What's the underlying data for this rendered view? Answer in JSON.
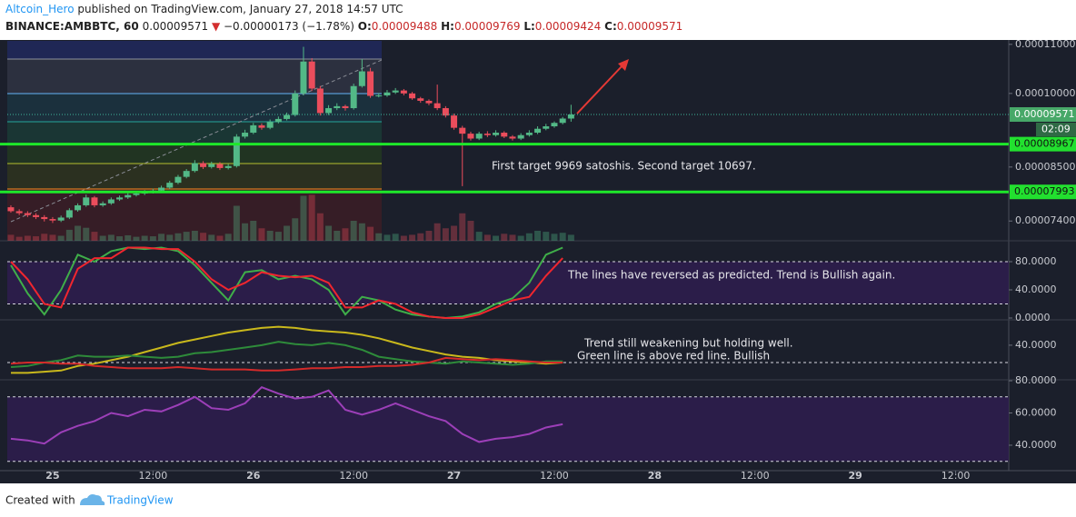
{
  "header": {
    "author": "Altcoin_Hero",
    "published": "published on TradingView.com, January 27, 2018 14:57 UTC",
    "symbol": "BINANCE:AMBBTC, 60",
    "last": "0.00009571",
    "change": "−0.00000173 (−1.78%)",
    "ohlc": [
      {
        "key": "O:",
        "value": "0.00009488"
      },
      {
        "key": "H:",
        "value": "0.00009769"
      },
      {
        "key": "L:",
        "value": "0.00009424"
      },
      {
        "key": "C:",
        "value": "0.00009571"
      }
    ]
  },
  "footer": {
    "created": "Created with",
    "brand": "TradingView"
  },
  "chart_data": [
    {
      "type": "candlestick",
      "x": [
        0,
        1,
        2,
        3,
        4,
        5,
        6,
        7,
        8,
        9,
        10,
        11,
        12,
        13,
        14,
        15,
        16,
        17,
        18,
        19,
        20,
        21,
        22,
        23,
        24,
        25,
        26,
        27,
        28,
        29,
        30,
        31,
        32,
        33,
        34,
        35,
        36,
        37,
        38,
        39,
        40,
        41,
        42,
        43,
        44,
        45,
        46,
        47,
        48,
        49,
        50,
        51,
        52,
        53,
        54,
        55,
        56,
        57,
        58,
        59,
        60,
        61,
        62,
        63,
        64,
        65,
        66,
        67
      ],
      "open": [
        7.68e-05,
        7.6e-05,
        7.56e-05,
        7.52e-05,
        7.48e-05,
        7.44e-05,
        7.41e-05,
        7.47e-05,
        7.62e-05,
        7.72e-05,
        7.88e-05,
        7.72e-05,
        7.76e-05,
        7.84e-05,
        7.88e-05,
        7.93e-05,
        7.96e-05,
        7.99e-05,
        8.02e-05,
        8.08e-05,
        8.18e-05,
        8.3e-05,
        8.42e-05,
        8.58e-05,
        8.5e-05,
        8.56e-05,
        8.48e-05,
        8.52e-05,
        9.12e-05,
        9.2e-05,
        9.35e-05,
        9.3e-05,
        9.42e-05,
        9.48e-05,
        9.56e-05,
        0.0001,
        0.0001065,
        0.000101,
        9.6e-05,
        9.7e-05,
        9.74e-05,
        9.7e-05,
        0.0001015,
        0.0001045,
        9.95e-05,
        9.96e-05,
        0.0001002,
        0.0001006,
        0.0001,
        9.9e-05,
        9.85e-05,
        9.8e-05,
        9.7e-05,
        9.55e-05,
        9.3e-05,
        9.18e-05,
        9.08e-05,
        9.18e-05,
        9.15e-05,
        9.2e-05,
        9.12e-05,
        9.08e-05,
        9.15e-05,
        9.2e-05,
        9.28e-05,
        9.33e-05,
        9.4e-05,
        9.488e-05
      ],
      "high": [
        7.72e-05,
        7.64e-05,
        7.6e-05,
        7.56e-05,
        7.52e-05,
        7.48e-05,
        7.51e-05,
        7.66e-05,
        7.76e-05,
        7.94e-05,
        7.91e-05,
        7.8e-05,
        7.88e-05,
        7.92e-05,
        7.97e-05,
        8e-05,
        8.03e-05,
        8.06e-05,
        8.12e-05,
        8.22e-05,
        8.34e-05,
        8.46e-05,
        8.64e-05,
        8.62e-05,
        8.61e-05,
        8.6e-05,
        8.56e-05,
        9.17e-05,
        9.26e-05,
        9.4e-05,
        9.39e-05,
        9.47e-05,
        9.53e-05,
        9.61e-05,
        0.0001006,
        0.0001095,
        0.0001072,
        0.0001015,
        9.76e-05,
        9.8e-05,
        9.77e-05,
        0.000102,
        0.000107,
        0.0001052,
        0.0001001,
        0.0001007,
        0.0001011,
        0.0001009,
        0.0001003,
        9.93e-05,
        9.88e-05,
        0.0001018,
        9.74e-05,
        9.59e-05,
        9.34e-05,
        9.22e-05,
        9.22e-05,
        9.23e-05,
        9.25e-05,
        9.23e-05,
        9.15e-05,
        9.19e-05,
        9.25e-05,
        9.33e-05,
        9.38e-05,
        9.43e-05,
        9.52e-05,
        9.769e-05
      ],
      "low": [
        7.57e-05,
        7.52e-05,
        7.48e-05,
        7.44e-05,
        7.39e-05,
        7.36e-05,
        7.38e-05,
        7.44e-05,
        7.59e-05,
        7.69e-05,
        7.68e-05,
        7.69e-05,
        7.73e-05,
        7.81e-05,
        7.85e-05,
        7.9e-05,
        7.93e-05,
        7.96e-05,
        7.99e-05,
        8.05e-05,
        8.15e-05,
        8.27e-05,
        8.39e-05,
        8.46e-05,
        8.47e-05,
        8.44e-05,
        8.45e-05,
        8.49e-05,
        9.08e-05,
        9.17e-05,
        9.26e-05,
        9.27e-05,
        9.39e-05,
        9.45e-05,
        9.53e-05,
        9.96e-05,
        0.0001005,
        9.55e-05,
        9.56e-05,
        9.66e-05,
        9.65e-05,
        9.67e-05,
        0.0001012,
        9.91e-05,
        9.92e-05,
        9.93e-05,
        9.99e-05,
        9.96e-05,
        9.87e-05,
        9.81e-05,
        9.76e-05,
        9.66e-05,
        9.51e-05,
        9.26e-05,
        8.11e-05,
        9.04e-05,
        9.05e-05,
        9.11e-05,
        9.12e-05,
        9.09e-05,
        9.04e-05,
        9.05e-05,
        9.12e-05,
        9.17e-05,
        9.25e-05,
        9.3e-05,
        9.37e-05,
        9.424e-05
      ],
      "close": [
        7.6e-05,
        7.56e-05,
        7.52e-05,
        7.48e-05,
        7.44e-05,
        7.41e-05,
        7.47e-05,
        7.62e-05,
        7.72e-05,
        7.88e-05,
        7.72e-05,
        7.76e-05,
        7.84e-05,
        7.88e-05,
        7.93e-05,
        7.96e-05,
        7.99e-05,
        8.02e-05,
        8.08e-05,
        8.18e-05,
        8.3e-05,
        8.42e-05,
        8.58e-05,
        8.5e-05,
        8.56e-05,
        8.48e-05,
        8.52e-05,
        9.12e-05,
        9.2e-05,
        9.35e-05,
        9.3e-05,
        9.42e-05,
        9.48e-05,
        9.56e-05,
        0.0001,
        0.0001065,
        0.000101,
        9.6e-05,
        9.7e-05,
        9.74e-05,
        9.7e-05,
        0.0001015,
        0.0001045,
        9.95e-05,
        9.96e-05,
        0.0001002,
        0.0001006,
        0.0001,
        9.9e-05,
        9.85e-05,
        9.8e-05,
        9.7e-05,
        9.55e-05,
        9.3e-05,
        9.18e-05,
        9.08e-05,
        9.18e-05,
        9.15e-05,
        9.2e-05,
        9.12e-05,
        9.08e-05,
        9.15e-05,
        9.2e-05,
        9.28e-05,
        9.33e-05,
        9.4e-05,
        9.488e-05,
        9.571e-05
      ],
      "colors": {
        "up": "#53b987",
        "down": "#eb4d5c"
      },
      "volume": {
        "ylim": [
          0,
          100
        ],
        "values": [
          12,
          8,
          10,
          9,
          14,
          12,
          10,
          22,
          30,
          26,
          18,
          10,
          12,
          9,
          11,
          8,
          10,
          9,
          14,
          12,
          15,
          18,
          20,
          16,
          12,
          10,
          14,
          70,
          35,
          40,
          25,
          20,
          18,
          30,
          45,
          90,
          92,
          55,
          30,
          20,
          25,
          40,
          35,
          28,
          15,
          12,
          14,
          10,
          12,
          15,
          20,
          35,
          25,
          30,
          55,
          40,
          18,
          12,
          10,
          14,
          12,
          10,
          15,
          20,
          18,
          14,
          16,
          12
        ]
      },
      "xlim": [
        -0.43,
        119.35
      ],
      "xticks": [
        {
          "value": 5,
          "label": "25"
        },
        {
          "value": 17,
          "label": "12:00"
        },
        {
          "value": 29,
          "label": "26"
        },
        {
          "value": 41,
          "label": "12:00"
        },
        {
          "value": 53,
          "label": "27"
        },
        {
          "value": 65,
          "label": "12:00"
        },
        {
          "value": 77,
          "label": "28"
        },
        {
          "value": 89,
          "label": "12:00"
        },
        {
          "value": 101,
          "label": "29"
        },
        {
          "value": 113,
          "label": "12:00"
        }
      ],
      "ylim": [
        6.997e-05,
        0.00011071
      ],
      "yticks": [
        {
          "value": 0.00011,
          "label": "0.00011000"
        },
        {
          "value": 0.0001,
          "label": "0.00010000"
        },
        {
          "value": 8.5e-05,
          "label": "0.00008500"
        },
        {
          "value": 7.4e-05,
          "label": "0.00007400"
        }
      ],
      "last_price": 9.571e-05,
      "countdown": "02:09",
      "price_lines": [
        8.967e-05,
        7.993e-05
      ],
      "annotations": [
        "First target 9969 satoshis. Second target 10697."
      ]
    },
    {
      "type": "line",
      "x": [
        0,
        2,
        4,
        6,
        8,
        10,
        12,
        14,
        16,
        18,
        20,
        22,
        24,
        26,
        28,
        30,
        32,
        34,
        36,
        38,
        40,
        42,
        44,
        46,
        48,
        50,
        52,
        54,
        56,
        58,
        60,
        62,
        64,
        66
      ],
      "series": [
        {
          "color": "#3fae49",
          "values": [
            75,
            35,
            5,
            40,
            90,
            80,
            95,
            100,
            98,
            100,
            95,
            75,
            50,
            25,
            65,
            68,
            55,
            60,
            55,
            40,
            5,
            30,
            25,
            12,
            5,
            2,
            0,
            2,
            8,
            20,
            28,
            50,
            90,
            100
          ]
        },
        {
          "color": "#f0262e",
          "values": [
            80,
            55,
            20,
            15,
            70,
            85,
            85,
            100,
            100,
            98,
            98,
            80,
            55,
            40,
            50,
            65,
            60,
            58,
            60,
            50,
            15,
            15,
            25,
            20,
            8,
            2,
            0,
            0,
            5,
            15,
            25,
            30,
            60,
            85
          ]
        }
      ],
      "ylim": [
        -2.6,
        109.7
      ],
      "yticks": [
        {
          "value": 80,
          "label": "80.0000"
        },
        {
          "value": 40,
          "label": "40.0000"
        },
        {
          "value": 0,
          "label": "0.0000"
        }
      ],
      "bands": [
        20,
        80
      ],
      "annotations": [
        "The lines have reversed as predicted. Trend is Bullish again."
      ]
    },
    {
      "type": "line",
      "x": [
        0,
        2,
        4,
        6,
        8,
        10,
        12,
        14,
        16,
        18,
        20,
        22,
        24,
        26,
        28,
        30,
        32,
        34,
        36,
        38,
        40,
        42,
        44,
        46,
        48,
        50,
        52,
        54,
        56,
        58,
        60,
        62,
        64,
        66
      ],
      "series": [
        {
          "color": "#c9b81c",
          "values": [
            16,
            16,
            17,
            18,
            22,
            24,
            27,
            30,
            34,
            38,
            42,
            45,
            48,
            51,
            53,
            55,
            56,
            55,
            53,
            52,
            51,
            49,
            46,
            42,
            38,
            35,
            32,
            30,
            29,
            27,
            26,
            25,
            24,
            25
          ]
        },
        {
          "color": "#2e8b3a",
          "values": [
            21,
            22,
            25,
            27,
            31,
            30,
            30,
            31,
            30,
            29,
            30,
            33,
            34,
            36,
            38,
            40,
            43,
            41,
            40,
            42,
            40,
            36,
            30,
            28,
            26,
            25,
            24,
            26,
            25,
            24,
            23,
            24,
            26,
            26
          ]
        },
        {
          "color": "#d42a2a",
          "values": [
            24,
            25,
            25,
            24,
            24,
            22,
            21,
            20,
            20,
            20,
            21,
            20,
            19,
            19,
            19,
            18,
            18,
            19,
            20,
            20,
            21,
            21,
            22,
            22,
            23,
            25,
            29,
            28,
            27,
            28,
            27,
            26,
            25,
            25
          ]
        }
      ],
      "ylim": [
        10,
        62
      ],
      "yticks": [
        {
          "value": 40,
          "label": "40.0000"
        }
      ],
      "bands": [
        25
      ],
      "annotations": [
        "Trend still weakening but holding well.",
        "Green line is above red line. Bullish"
      ]
    },
    {
      "type": "line",
      "x": [
        0,
        2,
        4,
        6,
        8,
        10,
        12,
        14,
        16,
        18,
        20,
        22,
        24,
        26,
        28,
        30,
        32,
        34,
        36,
        38,
        40,
        42,
        44,
        46,
        48,
        50,
        52,
        54,
        56,
        58,
        60,
        62,
        64,
        66
      ],
      "series": [
        {
          "color": "#9c3fb8",
          "values": [
            44,
            43,
            41,
            48,
            52,
            55,
            60,
            58,
            62,
            61,
            65,
            70,
            63,
            62,
            66,
            76,
            72,
            69,
            70,
            74,
            62,
            59,
            62,
            66,
            62,
            58,
            55,
            47,
            42,
            44,
            45,
            47,
            51,
            53
          ]
        }
      ],
      "ylim": [
        24.2,
        80.6
      ],
      "yticks": [
        {
          "value": 80,
          "label": "80.0000"
        },
        {
          "value": 60,
          "label": "60.0000"
        },
        {
          "value": 40,
          "label": "40.0000"
        }
      ],
      "bands": [
        30,
        70
      ],
      "annotations": []
    }
  ]
}
